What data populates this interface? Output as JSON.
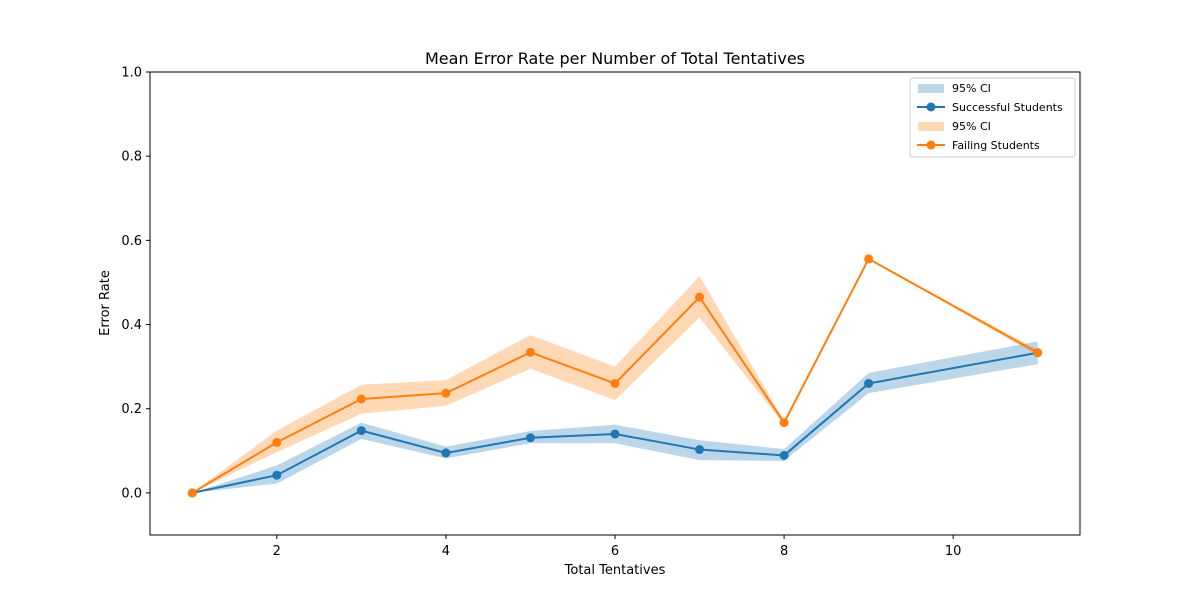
{
  "chart_data": {
    "type": "line",
    "title": "Mean Error Rate per Number of Total Tentatives",
    "xlabel": "Total Tentatives",
    "ylabel": "Error Rate",
    "xlim": [
      0.5,
      11.5
    ],
    "ylim": [
      -0.1,
      1.0
    ],
    "xticks": [
      2,
      4,
      6,
      8,
      10
    ],
    "xtick_labels": [
      "2",
      "4",
      "6",
      "8",
      "10"
    ],
    "yticks": [
      0.0,
      0.2,
      0.4,
      0.6,
      0.8,
      1.0
    ],
    "ytick_labels": [
      "0.0",
      "0.2",
      "0.4",
      "0.6",
      "0.8",
      "1.0"
    ],
    "grid": false,
    "legend_position": "top-right",
    "x": [
      1,
      2,
      3,
      4,
      5,
      6,
      7,
      8,
      9,
      10,
      11
    ],
    "series": [
      {
        "name": "Successful Students",
        "color": "#1f77b4",
        "x": [
          1,
          2,
          3,
          4,
          5,
          6,
          7,
          8,
          9,
          11
        ],
        "values": [
          0.0,
          0.042,
          0.148,
          0.095,
          0.131,
          0.14,
          0.103,
          0.089,
          0.26,
          0.333
        ],
        "ci_label": "95% CI",
        "ci_lower": [
          0.0,
          0.022,
          0.128,
          0.082,
          0.118,
          0.118,
          0.078,
          0.076,
          0.237,
          0.306
        ],
        "ci_upper": [
          0.0,
          0.065,
          0.167,
          0.11,
          0.147,
          0.162,
          0.125,
          0.104,
          0.285,
          0.36
        ]
      },
      {
        "name": "Failing Students",
        "color": "#ff7f0e",
        "x": [
          1,
          2,
          3,
          4,
          5,
          6,
          7,
          8,
          9,
          11
        ],
        "values": [
          0.0,
          0.12,
          0.223,
          0.237,
          0.334,
          0.26,
          0.465,
          0.167,
          0.556,
          0.333
        ],
        "ci_label": "95% CI",
        "ci_lower": [
          0.0,
          0.097,
          0.188,
          0.207,
          0.295,
          0.22,
          0.417,
          0.162,
          0.556,
          0.326
        ],
        "ci_upper": [
          0.0,
          0.148,
          0.257,
          0.268,
          0.375,
          0.3,
          0.515,
          0.172,
          0.556,
          0.34
        ]
      }
    ],
    "legend": [
      {
        "kind": "band",
        "label": "95% CI",
        "color": "#1f77b4"
      },
      {
        "kind": "line",
        "label": "Successful Students",
        "color": "#1f77b4"
      },
      {
        "kind": "band",
        "label": "95% CI",
        "color": "#ff7f0e"
      },
      {
        "kind": "line",
        "label": "Failing Students",
        "color": "#ff7f0e"
      }
    ]
  }
}
